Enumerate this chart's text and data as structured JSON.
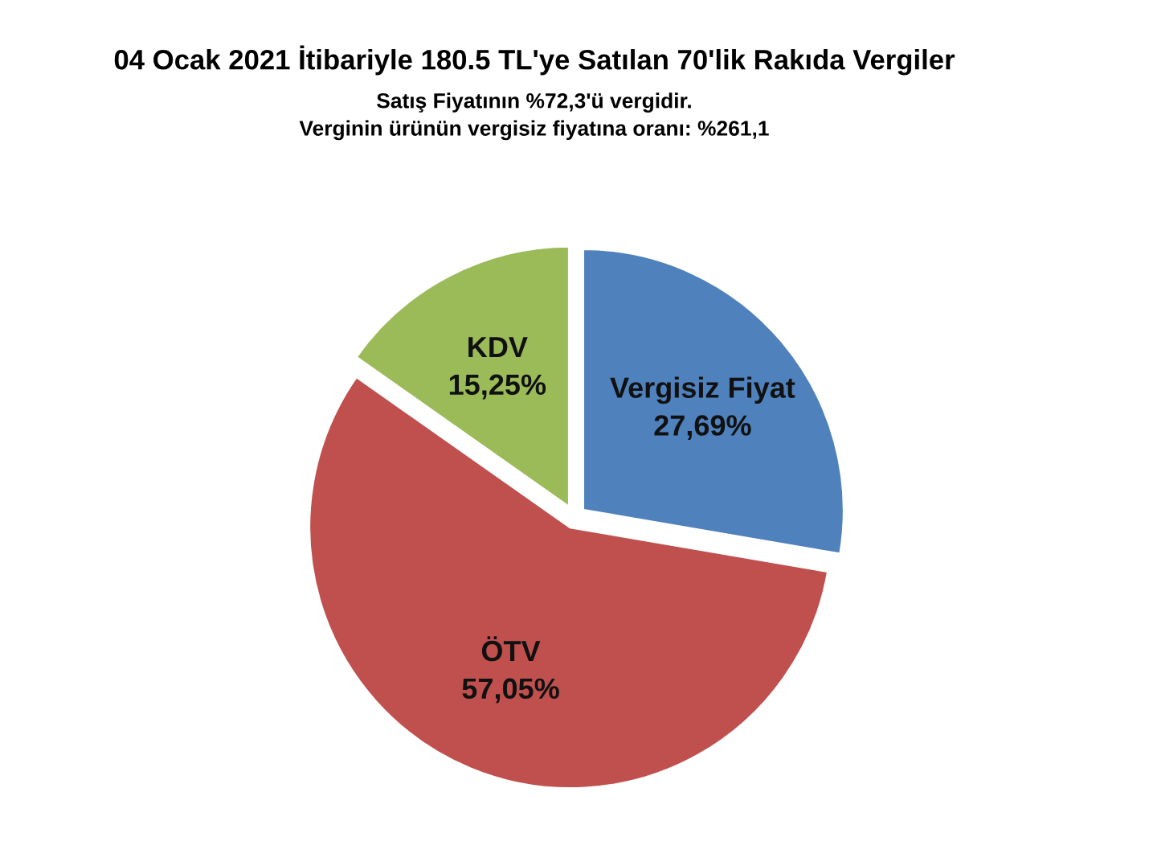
{
  "chart_data": {
    "type": "pie",
    "title": "04 Ocak 2021 İtibariyle 180.5 TL'ye Satılan 70'lik Rakıda Vergiler",
    "subtitle": "Satış Fiyatının %72,3'ü vergidir.\nVerginin ürünün vergisiz fiyatına oranı: %261,1",
    "categories": [
      "Vergisiz Fiyat",
      "ÖTV",
      "KDV"
    ],
    "values": [
      27.69,
      57.05,
      15.25
    ],
    "value_labels": [
      "27,69%",
      "57,05%",
      "15,25%"
    ],
    "colors": [
      "#4f81bd",
      "#c0504d",
      "#9bbb59"
    ],
    "legend": false
  }
}
